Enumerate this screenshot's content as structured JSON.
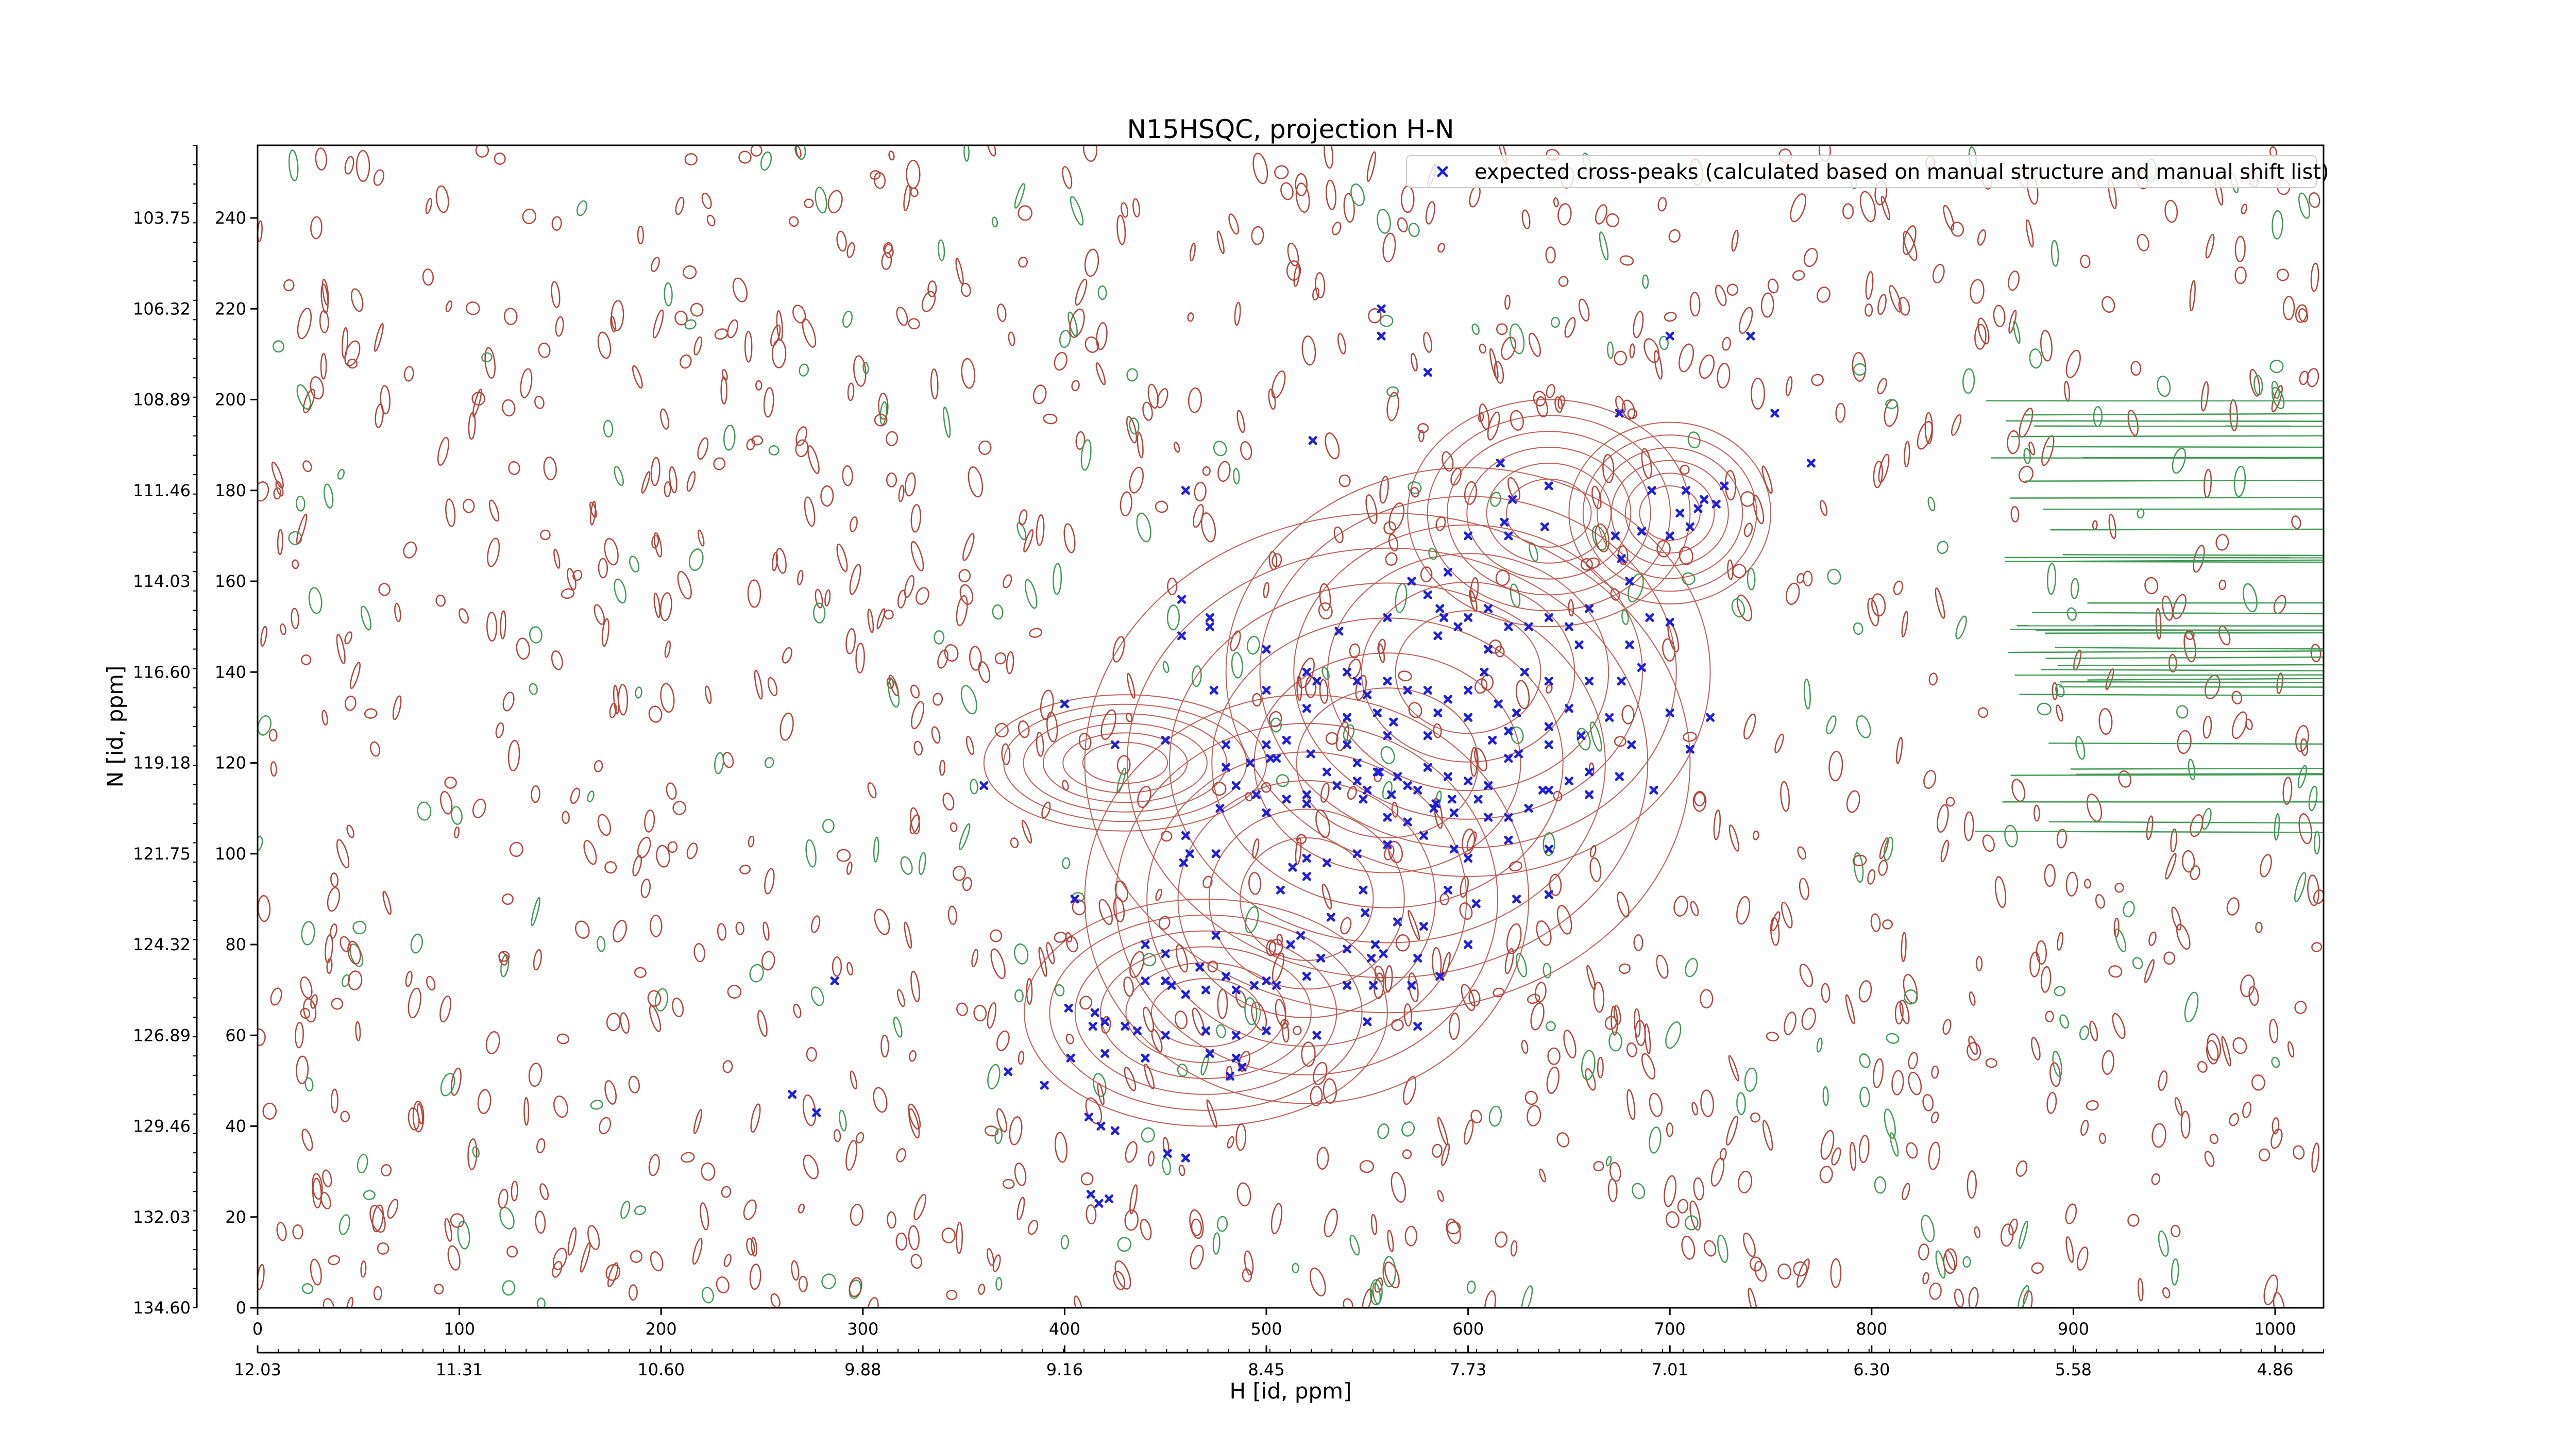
{
  "chart_data": {
    "type": "scatter",
    "title": "N15HSQC, projection H-N",
    "xlabel": "H [id, ppm]",
    "ylabel": "N [id, ppm]",
    "x_index_ticks": [
      "0",
      "100",
      "200",
      "300",
      "400",
      "500",
      "600",
      "700",
      "800",
      "900",
      "1000"
    ],
    "x_ppm_ticks": [
      "12.03",
      "11.31",
      "10.60",
      "9.88",
      "9.16",
      "8.45",
      "7.73",
      "7.01",
      "6.30",
      "5.58",
      "4.86"
    ],
    "y_index_ticks": [
      "0",
      "20",
      "40",
      "60",
      "80",
      "100",
      "120",
      "140",
      "160",
      "180",
      "200",
      "220",
      "240"
    ],
    "y_ppm_ticks": [
      "134.60",
      "132.03",
      "129.46",
      "126.89",
      "124.32",
      "121.75",
      "119.18",
      "116.60",
      "114.03",
      "111.46",
      "108.89",
      "106.32",
      "103.75"
    ],
    "xlim": [
      0,
      1024
    ],
    "ylim": [
      0,
      256
    ],
    "grid": false,
    "legend_position": "top-right",
    "colors": {
      "positive_contour": "#b5443a",
      "negative_contour": "#3f9b55",
      "peak_marker": "#1f1fdc",
      "background": "#ffffff",
      "frame": "#000000"
    },
    "series": [
      {
        "name": "expected cross-peaks (calculated based on manual structure and manual shift list)",
        "marker": "x",
        "points": [
          [
            557,
            220
          ],
          [
            557,
            214
          ],
          [
            580,
            206
          ],
          [
            675,
            197
          ],
          [
            752,
            197
          ],
          [
            523,
            191
          ],
          [
            770,
            186
          ],
          [
            616,
            186
          ],
          [
            700,
            214
          ],
          [
            740,
            214
          ],
          [
            460,
            180
          ],
          [
            640,
            181
          ],
          [
            622,
            178
          ],
          [
            618,
            173
          ],
          [
            638,
            172
          ],
          [
            691,
            180
          ],
          [
            708,
            180
          ],
          [
            717,
            178
          ],
          [
            714,
            176
          ],
          [
            723,
            177
          ],
          [
            727,
            181
          ],
          [
            600,
            170
          ],
          [
            620,
            170
          ],
          [
            673,
            170
          ],
          [
            686,
            171
          ],
          [
            700,
            170
          ],
          [
            705,
            175
          ],
          [
            710,
            172
          ],
          [
            676,
            165
          ],
          [
            680,
            160
          ],
          [
            590,
            162
          ],
          [
            572,
            160
          ],
          [
            580,
            157
          ],
          [
            600,
            152
          ],
          [
            610,
            154
          ],
          [
            620,
            150
          ],
          [
            640,
            152
          ],
          [
            650,
            150
          ],
          [
            660,
            154
          ],
          [
            690,
            152
          ],
          [
            700,
            151
          ],
          [
            458,
            156
          ],
          [
            472,
            152
          ],
          [
            458,
            148
          ],
          [
            472,
            150
          ],
          [
            536,
            149
          ],
          [
            560,
            152
          ],
          [
            586,
            154
          ],
          [
            588,
            152
          ],
          [
            595,
            150
          ],
          [
            630,
            150
          ],
          [
            585,
            148
          ],
          [
            610,
            145
          ],
          [
            655,
            146
          ],
          [
            680,
            146
          ],
          [
            686,
            141
          ],
          [
            608,
            140
          ],
          [
            628,
            140
          ],
          [
            640,
            138
          ],
          [
            660,
            138
          ],
          [
            676,
            138
          ],
          [
            500,
            145
          ],
          [
            520,
            140
          ],
          [
            540,
            140
          ],
          [
            550,
            135
          ],
          [
            580,
            136
          ],
          [
            600,
            136
          ],
          [
            474,
            136
          ],
          [
            500,
            136
          ],
          [
            525,
            138
          ],
          [
            545,
            138
          ],
          [
            560,
            138
          ],
          [
            570,
            136
          ],
          [
            590,
            134
          ],
          [
            615,
            133
          ],
          [
            624,
            131
          ],
          [
            650,
            132
          ],
          [
            670,
            130
          ],
          [
            700,
            131
          ],
          [
            720,
            130
          ],
          [
            400,
            133
          ],
          [
            520,
            132
          ],
          [
            540,
            130
          ],
          [
            555,
            131
          ],
          [
            563,
            129
          ],
          [
            585,
            131
          ],
          [
            600,
            130
          ],
          [
            620,
            127
          ],
          [
            640,
            128
          ],
          [
            656,
            126
          ],
          [
            425,
            124
          ],
          [
            450,
            125
          ],
          [
            480,
            124
          ],
          [
            500,
            124
          ],
          [
            510,
            125
          ],
          [
            540,
            124
          ],
          [
            560,
            126
          ],
          [
            580,
            126
          ],
          [
            612,
            125
          ],
          [
            625,
            122
          ],
          [
            640,
            124
          ],
          [
            681,
            124
          ],
          [
            710,
            123
          ],
          [
            360,
            115
          ],
          [
            480,
            119
          ],
          [
            492,
            120
          ],
          [
            502,
            121
          ],
          [
            505,
            121
          ],
          [
            522,
            122
          ],
          [
            530,
            118
          ],
          [
            545,
            120
          ],
          [
            555,
            118
          ],
          [
            565,
            117
          ],
          [
            570,
            115
          ],
          [
            580,
            119
          ],
          [
            590,
            117
          ],
          [
            600,
            116
          ],
          [
            610,
            115
          ],
          [
            620,
            121
          ],
          [
            637,
            114
          ],
          [
            650,
            116
          ],
          [
            660,
            118
          ],
          [
            675,
            117
          ],
          [
            692,
            114
          ],
          [
            485,
            115
          ],
          [
            495,
            113
          ],
          [
            510,
            112
          ],
          [
            520,
            113
          ],
          [
            535,
            115
          ],
          [
            545,
            116
          ],
          [
            550,
            114
          ],
          [
            556,
            118
          ],
          [
            562,
            113
          ],
          [
            575,
            114
          ],
          [
            583,
            110
          ],
          [
            592,
            112
          ],
          [
            605,
            112
          ],
          [
            620,
            108
          ],
          [
            640,
            114
          ],
          [
            660,
            113
          ],
          [
            477,
            110
          ],
          [
            500,
            109
          ],
          [
            520,
            111
          ],
          [
            548,
            112
          ],
          [
            560,
            108
          ],
          [
            570,
            107
          ],
          [
            584,
            111
          ],
          [
            593,
            109
          ],
          [
            610,
            108
          ],
          [
            630,
            110
          ],
          [
            460,
            104
          ],
          [
            475,
            100
          ],
          [
            459,
            98
          ],
          [
            462,
            100
          ],
          [
            513,
            97
          ],
          [
            520,
            99
          ],
          [
            530,
            98
          ],
          [
            545,
            100
          ],
          [
            560,
            102
          ],
          [
            578,
            104
          ],
          [
            593,
            101
          ],
          [
            600,
            99
          ],
          [
            620,
            103
          ],
          [
            640,
            101
          ],
          [
            507,
            92
          ],
          [
            520,
            95
          ],
          [
            548,
            92
          ],
          [
            590,
            92
          ],
          [
            604,
            89
          ],
          [
            624,
            90
          ],
          [
            640,
            91
          ],
          [
            405,
            90
          ],
          [
            532,
            86
          ],
          [
            549,
            87
          ],
          [
            565,
            85
          ],
          [
            578,
            84
          ],
          [
            512,
            80
          ],
          [
            517,
            82
          ],
          [
            540,
            79
          ],
          [
            554,
            80
          ],
          [
            558,
            78
          ],
          [
            600,
            80
          ],
          [
            440,
            80
          ],
          [
            475,
            82
          ],
          [
            450,
            78
          ],
          [
            467,
            75
          ],
          [
            480,
            73
          ],
          [
            527,
            77
          ],
          [
            552,
            77
          ],
          [
            575,
            77
          ],
          [
            494,
            71
          ],
          [
            505,
            71
          ],
          [
            540,
            71
          ],
          [
            553,
            71
          ],
          [
            572,
            71
          ],
          [
            286,
            72
          ],
          [
            440,
            72
          ],
          [
            450,
            72
          ],
          [
            453,
            71
          ],
          [
            460,
            69
          ],
          [
            470,
            70
          ],
          [
            485,
            70
          ],
          [
            500,
            72
          ],
          [
            520,
            73
          ],
          [
            586,
            73
          ],
          [
            402,
            66
          ],
          [
            415,
            65
          ],
          [
            420,
            63
          ],
          [
            414,
            62
          ],
          [
            430,
            62
          ],
          [
            436,
            61
          ],
          [
            450,
            60
          ],
          [
            470,
            61
          ],
          [
            485,
            60
          ],
          [
            500,
            61
          ],
          [
            525,
            60
          ],
          [
            550,
            63
          ],
          [
            575,
            62
          ],
          [
            403,
            55
          ],
          [
            420,
            56
          ],
          [
            440,
            55
          ],
          [
            472,
            56
          ],
          [
            485,
            55
          ],
          [
            482,
            51
          ],
          [
            488,
            53
          ],
          [
            372,
            52
          ],
          [
            265,
            47
          ],
          [
            277,
            43
          ],
          [
            390,
            49
          ],
          [
            412,
            42
          ],
          [
            418,
            40
          ],
          [
            425,
            39
          ],
          [
            451,
            34
          ],
          [
            460,
            33
          ],
          [
            413,
            25
          ],
          [
            417,
            23
          ],
          [
            422,
            24
          ]
        ]
      }
    ]
  }
}
